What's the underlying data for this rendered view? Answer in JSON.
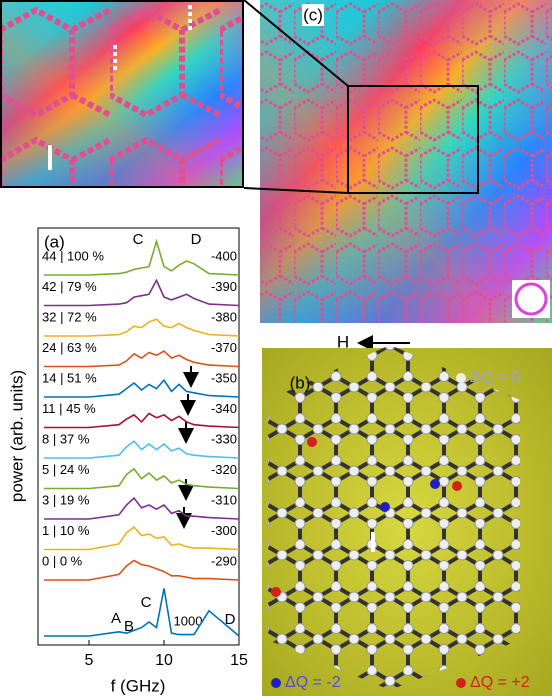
{
  "chart_data": {
    "type": "line",
    "panel_label": "(a)",
    "xlabel": "f (GHz)",
    "ylabel": "power (arb. units)",
    "xlim": [
      1.6,
      15
    ],
    "xticks": [
      5,
      10,
      15
    ],
    "x": [
      2,
      5,
      7,
      7.5,
      8,
      8.5,
      9,
      9.5,
      10,
      10.5,
      11,
      11.5,
      12,
      13,
      15
    ],
    "series": [
      {
        "color": "#0072bd",
        "values": [
          0,
          0,
          0.15,
          0.1,
          0.2,
          0.3,
          0.5,
          0.3,
          1.7,
          0.1,
          0.05,
          0.05,
          0.05,
          0.9,
          0
        ]
      },
      {
        "name": "0 | 0 %",
        "field": "-290",
        "color": "#d95319",
        "values": [
          0,
          0,
          0.2,
          0.5,
          0.7,
          0.55,
          0.5,
          0.4,
          0.3,
          0.15,
          0.15,
          0.1,
          0.05,
          0.05,
          0
        ]
      },
      {
        "name": "1 | 10 %",
        "field": "-300",
        "color": "#edb120",
        "values": [
          0,
          0,
          0.2,
          0.6,
          0.8,
          0.5,
          0.55,
          0.4,
          0.45,
          0.15,
          0.2,
          0.1,
          0.05,
          0.05,
          0
        ]
      },
      {
        "name": "3 | 19 %",
        "field": "-310",
        "color": "#7e2f8e",
        "values": [
          0,
          0,
          0.15,
          0.5,
          0.75,
          0.4,
          0.5,
          0.35,
          0.5,
          0.2,
          0.3,
          0.1,
          0.1,
          0.05,
          0
        ]
      },
      {
        "name": "5 | 24 %",
        "field": "-320",
        "color": "#77ac30",
        "values": [
          0,
          0,
          0.1,
          0.5,
          0.7,
          0.35,
          0.55,
          0.3,
          0.45,
          0.2,
          0.3,
          0.15,
          0.1,
          0.05,
          0
        ]
      },
      {
        "name": "8 | 37 %",
        "field": "-330",
        "color": "#4dbeee",
        "values": [
          0,
          0,
          0.1,
          0.4,
          0.6,
          0.3,
          0.5,
          0.3,
          0.5,
          0.25,
          0.35,
          0.15,
          0.1,
          0.05,
          0
        ]
      },
      {
        "name": "11 | 45 %",
        "field": "-340",
        "color": "#a2142f",
        "values": [
          0,
          0,
          0.1,
          0.3,
          0.45,
          0.2,
          0.5,
          0.35,
          0.45,
          0.25,
          0.4,
          0.2,
          0.1,
          0.05,
          0
        ]
      },
      {
        "name": "14 | 51 %",
        "field": "-350",
        "color": "#0072bd",
        "values": [
          0,
          0,
          0.1,
          0.3,
          0.5,
          0.25,
          0.45,
          0.3,
          0.6,
          0.2,
          0.45,
          0.2,
          0.15,
          0.05,
          0
        ]
      },
      {
        "name": "24 | 63 %",
        "field": "-370",
        "color": "#d95319",
        "values": [
          0,
          0,
          0.05,
          0.2,
          0.45,
          0.3,
          0.5,
          0.4,
          0.55,
          0.3,
          0.4,
          0.25,
          0.15,
          0.05,
          0
        ]
      },
      {
        "name": "32 | 72 %",
        "field": "-380",
        "color": "#edb120",
        "values": [
          0,
          0,
          0.05,
          0.15,
          0.35,
          0.3,
          0.5,
          0.6,
          0.35,
          0.3,
          0.45,
          0.3,
          0.2,
          0.05,
          0
        ]
      },
      {
        "name": "42 | 79 %",
        "field": "-390",
        "color": "#7e2f8e",
        "values": [
          0,
          0,
          0.05,
          0.1,
          0.3,
          0.35,
          0.4,
          0.9,
          0.3,
          0.2,
          0.3,
          0.4,
          0.25,
          0.05,
          0
        ]
      },
      {
        "name": "44 | 100 %",
        "field": "-400",
        "color": "#77ac30",
        "values": [
          0,
          0,
          0.05,
          0.1,
          0.2,
          0.25,
          0.3,
          1.2,
          0.3,
          0.15,
          0.35,
          0.5,
          0.4,
          0.05,
          0
        ]
      }
    ],
    "top_c": "C",
    "top_d": "D",
    "bottom_a": "A",
    "bottom_b": "B",
    "bottom_c": "C",
    "bottom_field": "1000",
    "bottom_d": "D"
  },
  "panel_c": {
    "label": "(c)",
    "field_label": "H"
  },
  "panel_b": {
    "label": "(b)",
    "q0": "ΔQ = 0",
    "qm2": "ΔQ = -2",
    "qp2": "ΔQ = +2"
  }
}
